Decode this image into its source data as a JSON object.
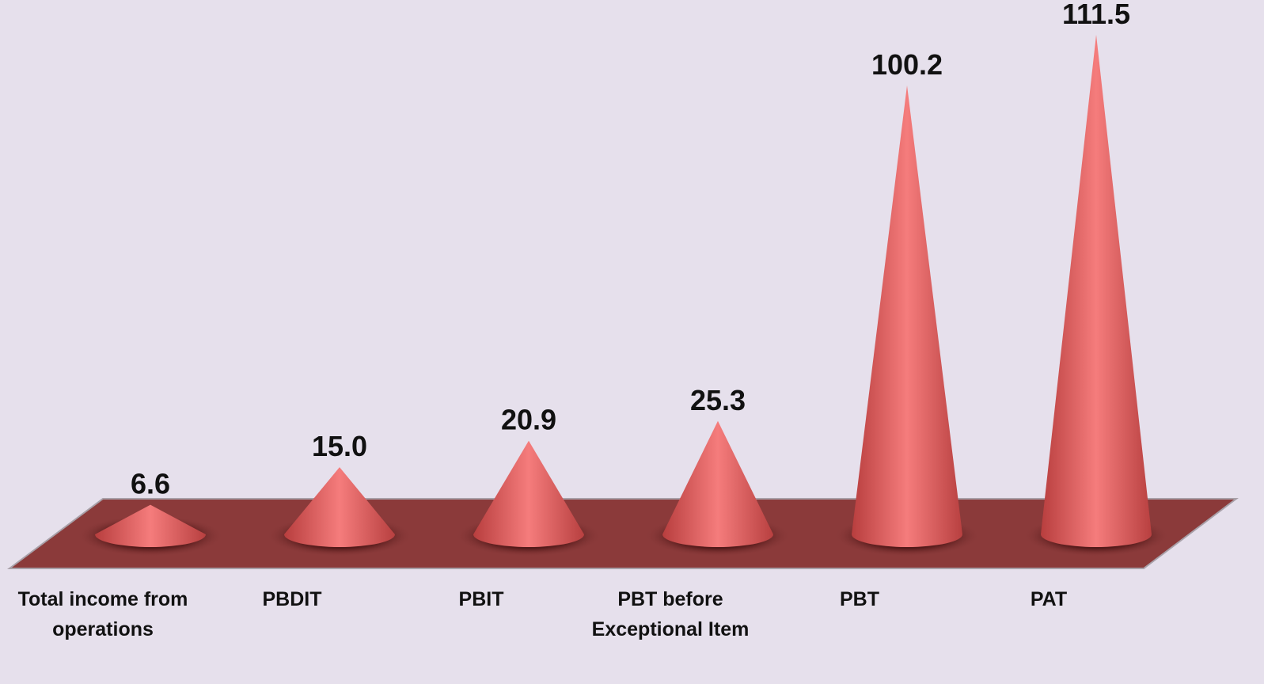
{
  "chart_data": {
    "type": "cone",
    "categories": [
      "Total income from operations",
      "PBDIT",
      "PBIT",
      "PBT before Exceptional Item",
      "PBT",
      "PAT"
    ],
    "values": [
      6.6,
      15.0,
      20.9,
      25.3,
      100.2,
      111.5
    ],
    "value_labels": [
      "6.6",
      "15.0",
      "20.9",
      "25.3",
      "100.2",
      "111.5"
    ],
    "color": "#d95656",
    "ylim": [
      0,
      120
    ]
  }
}
